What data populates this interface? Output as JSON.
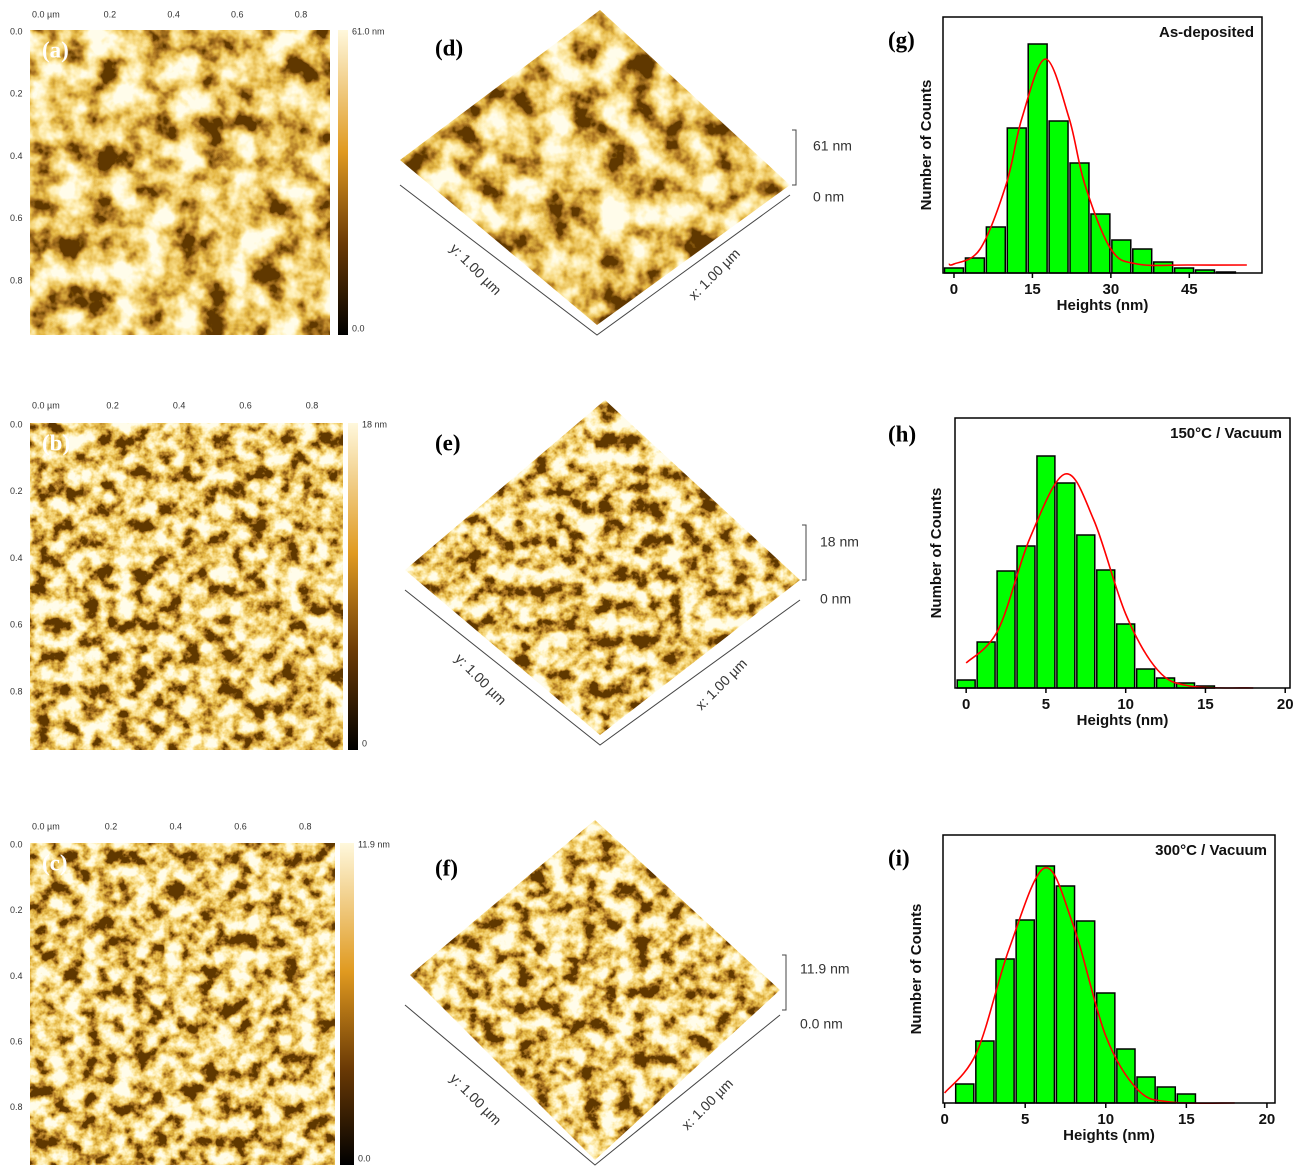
{
  "panels": [
    {
      "label": "(a)",
      "x_ticks": [
        "0.0 µm",
        "0.2",
        "0.4",
        "0.6",
        "0.8"
      ],
      "y_ticks": [
        "0.0",
        "0.2",
        "0.4",
        "0.6",
        "0.8"
      ],
      "scale": [
        "61.0 nm",
        "0.0"
      ]
    },
    {
      "label": "(b)",
      "x_ticks": [
        "0.0 µm",
        "0.2",
        "0.4",
        "0.6",
        "0.8"
      ],
      "y_ticks": [
        "0.0",
        "0.2",
        "0.4",
        "0.6",
        "0.8"
      ],
      "scale": [
        "18 nm",
        "0"
      ]
    },
    {
      "label": "(c)",
      "x_ticks": [
        "0.0 µm",
        "0.2",
        "0.4",
        "0.6",
        "0.8"
      ],
      "y_ticks": [
        "0.0",
        "0.2",
        "0.4",
        "0.6",
        "0.8"
      ],
      "scale": [
        "11.9 nm",
        "0.0"
      ]
    }
  ],
  "surfaces": [
    {
      "label": "(d)",
      "z_top": "61 nm",
      "z_bottom": "0 nm",
      "y_axis": "y: 1.00 µm",
      "x_axis": "x: 1.00 µm"
    },
    {
      "label": "(e)",
      "z_top": "18 nm",
      "z_bottom": "0 nm",
      "y_axis": "y: 1.00 µm",
      "x_axis": "x: 1.00 µm"
    },
    {
      "label": "(f)",
      "z_top": "11.9 nm",
      "z_bottom": "0.0 nm",
      "y_axis": "y: 1.00 µm",
      "x_axis": "x: 1.00 µm"
    }
  ],
  "chart_data": [
    {
      "type": "histogram",
      "panel_label": "(g)",
      "title": "As-deposited",
      "xlabel": "Heights (nm)",
      "ylabel": "Number of Counts",
      "bins": [
        -2,
        2,
        6,
        10,
        14,
        18,
        22,
        26,
        30,
        34,
        38,
        42,
        46,
        50,
        54
      ],
      "values": [
        5,
        15,
        46,
        145,
        229,
        152,
        110,
        59,
        33,
        24,
        11,
        5,
        3,
        1
      ],
      "color": "#00ff00",
      "xlim": [
        -2.1,
        58.9
      ],
      "xticks": [
        0,
        15,
        30,
        45
      ],
      "ylim": [
        0,
        256
      ],
      "fit": {
        "color": "#ff0000",
        "x": [
          -1,
          0,
          5,
          10,
          13,
          17.5,
          22,
          25,
          30,
          35,
          45,
          56
        ],
        "values": [
          9,
          9,
          24,
          89,
          155,
          214,
          155,
          89,
          24,
          9,
          8,
          8
        ]
      }
    },
    {
      "type": "histogram",
      "panel_label": "(h)",
      "title": "150°C / Vacuum",
      "xlabel": "Heights (nm)",
      "ylabel": "Number of Counts",
      "bins": [
        -0.625,
        0.625,
        1.875,
        3.125,
        4.375,
        5.625,
        6.875,
        8.125,
        9.375,
        10.625,
        11.875,
        13.125,
        14.375,
        15.625
      ],
      "values": [
        8,
        46,
        117,
        142,
        232,
        205,
        153,
        118,
        64,
        19,
        10,
        5,
        2
      ],
      "color": "#00ff00",
      "xlim": [
        -0.7,
        20.3
      ],
      "xticks": [
        0,
        5,
        10,
        15,
        20
      ],
      "ylim": [
        0,
        270
      ],
      "fit": {
        "color": "#ff0000",
        "x": [
          0,
          2,
          4,
          6.2,
          8,
          10,
          12,
          14,
          18
        ],
        "values": [
          25,
          58,
          150,
          214,
          168,
          74,
          18,
          2,
          0
        ]
      }
    },
    {
      "type": "histogram",
      "panel_label": "(i)",
      "title": "300°C / Vacuum",
      "xlabel": "Heights (nm)",
      "ylabel": "Number of Counts",
      "bins": [
        0.625,
        1.875,
        3.125,
        4.375,
        5.625,
        6.875,
        8.125,
        9.375,
        10.625,
        11.875,
        13.125,
        14.375,
        15.625
      ],
      "values": [
        19,
        62,
        144,
        183,
        237,
        217,
        182,
        110,
        54,
        26,
        16,
        9
      ],
      "color": "#00ff00",
      "xlim": [
        -0.1,
        20.5
      ],
      "xticks": [
        0,
        5,
        10,
        15,
        20
      ],
      "ylim": [
        0,
        268
      ],
      "fit": {
        "color": "#ff0000",
        "x": [
          0,
          2,
          4,
          6.2,
          8,
          10,
          12,
          14,
          18
        ],
        "values": [
          10,
          51,
          154,
          235,
          177,
          67,
          13,
          1,
          0
        ]
      }
    }
  ]
}
